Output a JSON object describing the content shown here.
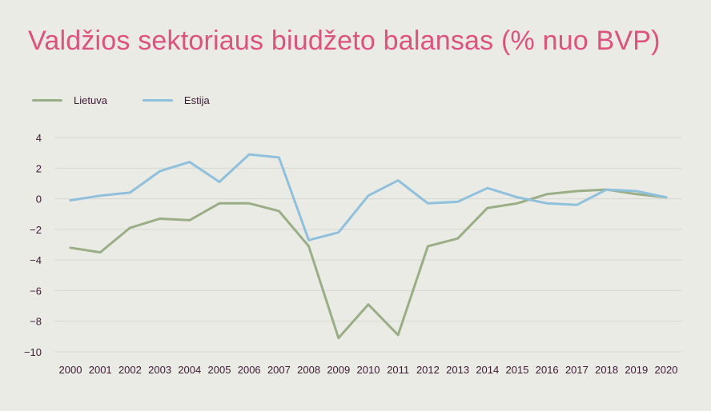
{
  "title": "Valdžios sektoriaus biudžeto balansas (% nuo BVP)",
  "chart_data": {
    "type": "line",
    "categories": [
      "2000",
      "2001",
      "2002",
      "2003",
      "2004",
      "2005",
      "2006",
      "2007",
      "2008",
      "2009",
      "2010",
      "2011",
      "2012",
      "2013",
      "2014",
      "2015",
      "2016",
      "2017",
      "2018",
      "2019",
      "2020"
    ],
    "series": [
      {
        "name": "Lietuva",
        "color": "#9aae86",
        "values": [
          -3.2,
          -3.5,
          -1.9,
          -1.3,
          -1.4,
          -0.3,
          -0.3,
          -0.8,
          -3.1,
          -9.1,
          -6.9,
          -8.9,
          -3.1,
          -2.6,
          -0.6,
          -0.3,
          0.3,
          0.5,
          0.6,
          0.3,
          0.1
        ]
      },
      {
        "name": "Estija",
        "color": "#8fc0dc",
        "values": [
          -0.1,
          0.2,
          0.4,
          1.8,
          2.4,
          1.1,
          2.9,
          2.7,
          -2.7,
          -2.2,
          0.2,
          1.2,
          -0.3,
          -0.2,
          0.7,
          0.1,
          -0.3,
          -0.4,
          0.6,
          0.5,
          0.1
        ]
      }
    ],
    "yticks": [
      4,
      2,
      0,
      -2,
      -4,
      -6,
      -8,
      -10
    ],
    "ytick_labels": [
      "4",
      "2",
      "0",
      "−2",
      "−4",
      "−6",
      "−8",
      "−10"
    ],
    "ylim": [
      -10,
      4
    ],
    "grid": true,
    "legend": "top-left"
  }
}
